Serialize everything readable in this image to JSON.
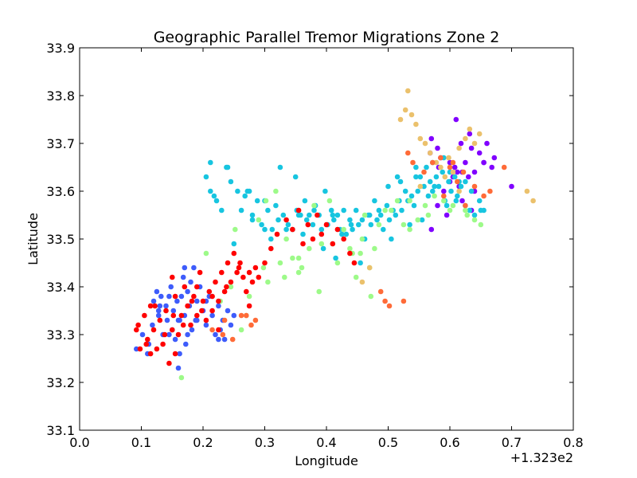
{
  "chart_data": {
    "type": "scatter",
    "title": "Geographic Parallel Tremor Migrations Zone 2",
    "xlabel": "Longitude",
    "ylabel": "Latitude",
    "x_offset_label": "+1.323e2",
    "xlim": [
      0.0,
      0.8
    ],
    "ylim": [
      33.1,
      33.9
    ],
    "xticks": [
      "0.0",
      "0.1",
      "0.2",
      "0.3",
      "0.4",
      "0.5",
      "0.6",
      "0.7",
      "0.8"
    ],
    "yticks": [
      "33.1",
      "33.2",
      "33.3",
      "33.4",
      "33.5",
      "33.6",
      "33.7",
      "33.8",
      "33.9"
    ],
    "grid": false,
    "legend": false,
    "colors": [
      "#8000ff",
      "#3e5cfb",
      "#17c5e0",
      "#9dfa89",
      "#ebc16c",
      "#ff6b38",
      "#ff0000"
    ],
    "series": [
      {
        "color": "#8000ff",
        "x": [
          0.57,
          0.58,
          0.585,
          0.6,
          0.608,
          0.612,
          0.618,
          0.625,
          0.63,
          0.635,
          0.64,
          0.648,
          0.655,
          0.66,
          0.668,
          0.672,
          0.6,
          0.59,
          0.58,
          0.595,
          0.605,
          0.615,
          0.62,
          0.64,
          0.57,
          0.61,
          0.632,
          0.655,
          0.7,
          0.568,
          0.62,
          0.635,
          0.582
        ],
        "y": [
          33.71,
          33.69,
          33.67,
          33.66,
          33.65,
          33.64,
          33.7,
          33.66,
          33.63,
          33.69,
          33.64,
          33.68,
          33.66,
          33.7,
          33.65,
          33.67,
          33.62,
          33.6,
          33.57,
          33.55,
          33.63,
          33.61,
          33.58,
          33.6,
          33.52,
          33.75,
          33.72,
          33.66,
          33.61,
          33.68,
          33.64,
          33.56,
          33.65
        ]
      },
      {
        "color": "#3e5cfb",
        "x": [
          0.092,
          0.102,
          0.11,
          0.118,
          0.12,
          0.125,
          0.128,
          0.132,
          0.135,
          0.14,
          0.142,
          0.148,
          0.15,
          0.152,
          0.155,
          0.158,
          0.16,
          0.162,
          0.165,
          0.168,
          0.17,
          0.172,
          0.175,
          0.178,
          0.18,
          0.182,
          0.185,
          0.188,
          0.19,
          0.195,
          0.2,
          0.205,
          0.21,
          0.215,
          0.22,
          0.225,
          0.228,
          0.232,
          0.235,
          0.24,
          0.245,
          0.25,
          0.112,
          0.128,
          0.145,
          0.16,
          0.175,
          0.19,
          0.162,
          0.205,
          0.225,
          0.145,
          0.17,
          0.13
        ],
        "y": [
          33.27,
          33.3,
          33.26,
          33.32,
          33.37,
          33.39,
          33.34,
          33.38,
          33.3,
          33.36,
          33.33,
          33.4,
          33.31,
          33.35,
          33.29,
          33.37,
          33.33,
          33.26,
          33.38,
          33.42,
          33.34,
          33.28,
          33.39,
          33.36,
          33.41,
          33.31,
          33.44,
          33.33,
          33.37,
          33.4,
          33.35,
          33.32,
          33.38,
          33.34,
          33.3,
          33.36,
          33.31,
          33.33,
          33.29,
          33.35,
          33.32,
          33.34,
          33.28,
          33.35,
          33.38,
          33.23,
          33.3,
          33.33,
          33.33,
          33.37,
          33.29,
          33.3,
          33.44,
          33.36
        ]
      },
      {
        "color": "#17c5e0",
        "x": [
          0.205,
          0.212,
          0.218,
          0.222,
          0.23,
          0.238,
          0.245,
          0.25,
          0.256,
          0.262,
          0.268,
          0.275,
          0.28,
          0.288,
          0.295,
          0.3,
          0.305,
          0.312,
          0.318,
          0.322,
          0.33,
          0.338,
          0.345,
          0.352,
          0.358,
          0.362,
          0.368,
          0.372,
          0.378,
          0.382,
          0.388,
          0.392,
          0.398,
          0.402,
          0.408,
          0.412,
          0.418,
          0.422,
          0.428,
          0.432,
          0.438,
          0.442,
          0.448,
          0.452,
          0.458,
          0.462,
          0.468,
          0.472,
          0.478,
          0.482,
          0.488,
          0.492,
          0.498,
          0.502,
          0.508,
          0.512,
          0.518,
          0.522,
          0.528,
          0.532,
          0.538,
          0.542,
          0.548,
          0.552,
          0.558,
          0.562,
          0.568,
          0.572,
          0.578,
          0.582,
          0.588,
          0.592,
          0.598,
          0.602,
          0.608,
          0.612,
          0.618,
          0.625,
          0.632,
          0.64,
          0.648,
          0.655,
          0.212,
          0.24,
          0.272,
          0.3,
          0.325,
          0.35,
          0.38,
          0.41,
          0.44,
          0.47,
          0.5,
          0.52,
          0.545,
          0.565,
          0.59,
          0.61,
          0.635,
          0.65,
          0.395,
          0.415,
          0.355,
          0.335,
          0.455,
          0.505,
          0.535,
          0.555,
          0.575,
          0.595,
          0.615,
          0.28,
          0.31,
          0.365,
          0.425,
          0.485,
          0.515,
          0.545,
          0.572,
          0.6,
          0.625
        ],
        "y": [
          33.63,
          33.6,
          33.59,
          33.58,
          33.56,
          33.65,
          33.62,
          33.49,
          33.6,
          33.56,
          33.59,
          33.6,
          33.54,
          33.58,
          33.53,
          33.52,
          33.56,
          33.52,
          33.57,
          33.54,
          33.55,
          33.53,
          33.52,
          33.56,
          33.55,
          33.51,
          33.54,
          33.55,
          33.53,
          33.57,
          33.55,
          33.52,
          33.6,
          33.53,
          33.56,
          33.54,
          33.55,
          33.52,
          33.56,
          33.51,
          33.54,
          33.52,
          33.56,
          33.53,
          33.54,
          33.5,
          33.55,
          33.53,
          33.58,
          33.54,
          33.55,
          33.52,
          33.57,
          33.54,
          33.56,
          33.55,
          33.58,
          33.56,
          33.6,
          33.58,
          33.59,
          33.57,
          33.6,
          33.63,
          33.61,
          33.65,
          33.62,
          33.66,
          33.63,
          33.61,
          33.64,
          33.58,
          33.62,
          33.6,
          33.63,
          33.59,
          33.61,
          33.57,
          33.56,
          33.55,
          33.58,
          33.56,
          33.66,
          33.65,
          33.6,
          33.58,
          33.65,
          33.63,
          33.56,
          33.55,
          33.53,
          33.55,
          33.61,
          33.62,
          33.63,
          33.59,
          33.67,
          33.58,
          33.6,
          33.56,
          33.48,
          33.46,
          33.55,
          33.52,
          33.45,
          33.5,
          33.53,
          33.54,
          33.61,
          33.57,
          33.62,
          33.55,
          33.5,
          33.58,
          33.51,
          33.56,
          33.63,
          33.65,
          33.6,
          33.64,
          33.62
        ]
      },
      {
        "color": "#9dfa89",
        "x": [
          0.165,
          0.205,
          0.228,
          0.245,
          0.262,
          0.275,
          0.29,
          0.302,
          0.318,
          0.325,
          0.332,
          0.345,
          0.36,
          0.372,
          0.38,
          0.392,
          0.405,
          0.418,
          0.428,
          0.438,
          0.448,
          0.455,
          0.462,
          0.47,
          0.478,
          0.485,
          0.495,
          0.505,
          0.515,
          0.525,
          0.535,
          0.548,
          0.56,
          0.575,
          0.59,
          0.605,
          0.625,
          0.64,
          0.65,
          0.252,
          0.27,
          0.298,
          0.335,
          0.355,
          0.388,
          0.41,
          0.442,
          0.458,
          0.472,
          0.535,
          0.565,
          0.6,
          0.628,
          0.305,
          0.355
        ],
        "y": [
          33.21,
          33.47,
          33.37,
          33.4,
          33.31,
          33.38,
          33.54,
          33.58,
          33.6,
          33.45,
          33.42,
          33.46,
          33.44,
          33.48,
          33.57,
          33.49,
          33.58,
          33.45,
          33.52,
          33.48,
          33.42,
          33.47,
          33.55,
          33.44,
          33.48,
          33.53,
          33.56,
          33.56,
          33.58,
          33.53,
          33.58,
          33.54,
          33.57,
          33.59,
          33.58,
          33.57,
          33.56,
          33.54,
          33.53,
          33.52,
          33.34,
          33.44,
          33.5,
          33.43,
          33.39,
          33.49,
          33.47,
          33.5,
          33.38,
          33.52,
          33.55,
          33.56,
          33.55,
          33.41,
          33.46
        ]
      },
      {
        "color": "#ebc16c",
        "x": [
          0.532,
          0.528,
          0.52,
          0.538,
          0.545,
          0.552,
          0.56,
          0.568,
          0.578,
          0.585,
          0.592,
          0.598,
          0.605,
          0.615,
          0.625,
          0.632,
          0.64,
          0.648,
          0.735,
          0.725,
          0.458,
          0.47,
          0.552,
          0.615
        ],
        "y": [
          33.81,
          33.77,
          33.75,
          33.76,
          33.74,
          33.71,
          33.7,
          33.68,
          33.66,
          33.65,
          33.63,
          33.67,
          33.64,
          33.69,
          33.71,
          33.73,
          33.7,
          33.72,
          33.58,
          33.6,
          33.41,
          33.44,
          33.61,
          33.6
        ]
      },
      {
        "color": "#ff6b38",
        "x": [
          0.215,
          0.232,
          0.248,
          0.262,
          0.278,
          0.285,
          0.488,
          0.495,
          0.502,
          0.525,
          0.532,
          0.54,
          0.558,
          0.572,
          0.585,
          0.6,
          0.612,
          0.622,
          0.64,
          0.655,
          0.665,
          0.688,
          0.59,
          0.605,
          0.625,
          0.235,
          0.27
        ],
        "y": [
          33.31,
          33.3,
          33.29,
          33.34,
          33.32,
          33.33,
          33.39,
          33.37,
          33.36,
          33.37,
          33.68,
          33.66,
          33.64,
          33.66,
          33.67,
          33.65,
          33.62,
          33.64,
          33.61,
          33.59,
          33.6,
          33.65,
          33.59,
          33.66,
          33.57,
          33.33,
          33.34
        ]
      },
      {
        "color": "#ff0000",
        "x": [
          0.092,
          0.098,
          0.105,
          0.11,
          0.115,
          0.12,
          0.125,
          0.13,
          0.135,
          0.14,
          0.145,
          0.15,
          0.155,
          0.16,
          0.165,
          0.17,
          0.175,
          0.18,
          0.185,
          0.19,
          0.195,
          0.2,
          0.205,
          0.21,
          0.215,
          0.22,
          0.225,
          0.23,
          0.235,
          0.24,
          0.245,
          0.25,
          0.255,
          0.26,
          0.265,
          0.27,
          0.275,
          0.28,
          0.285,
          0.29,
          0.3,
          0.31,
          0.32,
          0.335,
          0.345,
          0.355,
          0.362,
          0.37,
          0.378,
          0.385,
          0.392,
          0.4,
          0.41,
          0.418,
          0.428,
          0.438,
          0.445,
          0.095,
          0.108,
          0.122,
          0.138,
          0.152,
          0.168,
          0.182,
          0.198,
          0.215,
          0.238,
          0.258,
          0.275,
          0.115,
          0.15,
          0.19,
          0.225,
          0.155
        ],
        "y": [
          33.31,
          33.27,
          33.34,
          33.29,
          33.36,
          33.31,
          33.27,
          33.33,
          33.28,
          33.35,
          33.24,
          33.31,
          33.38,
          33.3,
          33.34,
          33.4,
          33.36,
          33.32,
          33.38,
          33.34,
          33.43,
          33.37,
          33.33,
          33.39,
          33.35,
          33.41,
          33.37,
          33.43,
          33.39,
          33.45,
          33.41,
          33.47,
          33.43,
          33.45,
          33.42,
          33.39,
          33.36,
          33.41,
          33.44,
          33.42,
          33.45,
          33.48,
          33.51,
          33.54,
          33.52,
          33.56,
          33.49,
          33.53,
          33.5,
          33.55,
          33.51,
          33.53,
          33.49,
          33.52,
          33.5,
          33.47,
          33.45,
          33.32,
          33.28,
          33.36,
          33.3,
          33.34,
          33.32,
          33.37,
          33.35,
          33.38,
          33.4,
          33.44,
          33.43,
          33.26,
          33.42,
          33.4,
          33.31,
          33.26
        ]
      }
    ]
  }
}
